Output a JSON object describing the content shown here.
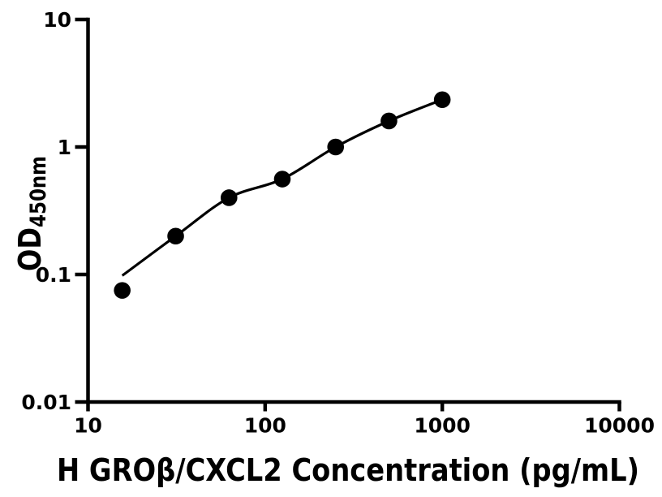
{
  "figure": {
    "background_color": "#ffffff",
    "ink_color": "#000000"
  },
  "chart_data": {
    "type": "scatter",
    "title": "",
    "xlabel": "H GROβ/CXCL2 Concentration (pg/mL)",
    "ylabel": "OD450nm",
    "ylabel_main": "OD",
    "ylabel_sub": "450nm",
    "x_scale": "log10",
    "y_scale": "log10",
    "xlim": [
      10,
      10000
    ],
    "ylim": [
      0.01,
      10
    ],
    "x_ticks": [
      "10",
      "100",
      "1000",
      "10000"
    ],
    "y_ticks": [
      "10",
      "1",
      "0.1",
      "0.01"
    ],
    "grid": false,
    "legend": null,
    "series": [
      {
        "name": "standard-points",
        "kind": "scatter",
        "marker": "filled-circle",
        "color": "#000000",
        "points": [
          {
            "x": 15.6,
            "y": 0.075
          },
          {
            "x": 31.25,
            "y": 0.2
          },
          {
            "x": 62.5,
            "y": 0.4
          },
          {
            "x": 125,
            "y": 0.56
          },
          {
            "x": 250,
            "y": 1.0
          },
          {
            "x": 500,
            "y": 1.6
          },
          {
            "x": 1000,
            "y": 2.35
          }
        ]
      },
      {
        "name": "fitted-curve",
        "kind": "line",
        "color": "#000000",
        "points": [
          {
            "x": 15.6,
            "y": 0.098
          },
          {
            "x": 31.25,
            "y": 0.2
          },
          {
            "x": 62.5,
            "y": 0.4
          },
          {
            "x": 125,
            "y": 0.56
          },
          {
            "x": 250,
            "y": 1.0
          },
          {
            "x": 500,
            "y": 1.6
          },
          {
            "x": 1000,
            "y": 2.35
          }
        ]
      }
    ]
  }
}
